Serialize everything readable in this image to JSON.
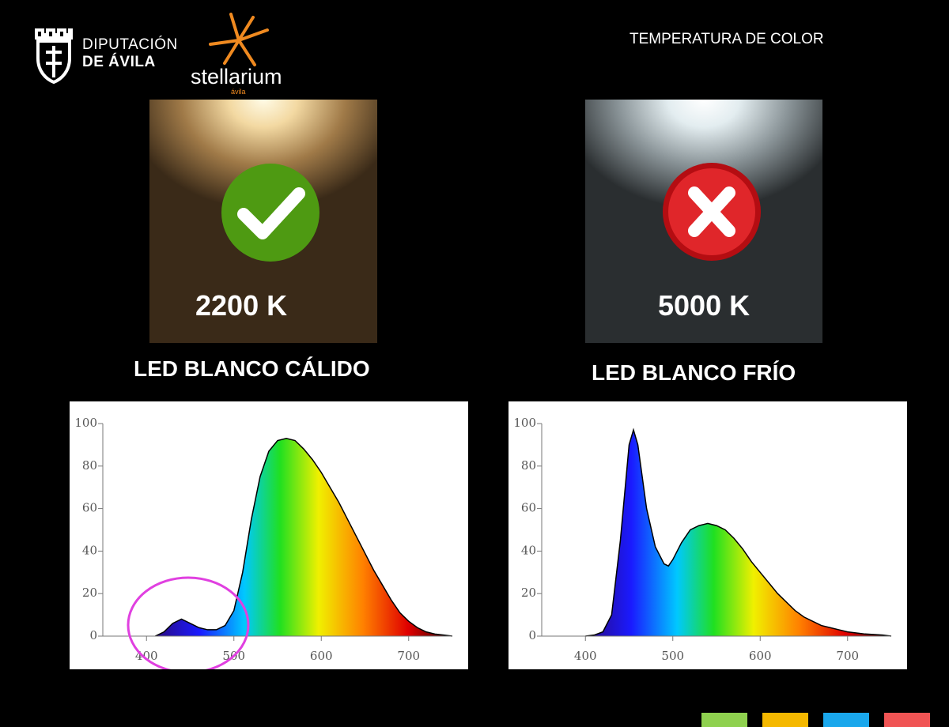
{
  "header": {
    "logo_1_line_1": "DIPUTACIÓN",
    "logo_1_line_2": "DE ÁVILA",
    "logo_2": "stellarium",
    "logo_2_sub": "ávila",
    "title": "TEMPERATURA DE COLOR"
  },
  "panels": [
    {
      "temperature": "2200 K",
      "label": "LED BLANCO CÁLIDO"
    },
    {
      "temperature": "5000 K",
      "label": "LED BLANCO FRÍO"
    }
  ],
  "chart_data": [
    {
      "type": "area",
      "x": [
        410,
        420,
        430,
        440,
        450,
        460,
        470,
        480,
        490,
        500,
        510,
        520,
        530,
        540,
        550,
        560,
        570,
        580,
        590,
        600,
        610,
        620,
        630,
        640,
        650,
        660,
        670,
        680,
        690,
        700,
        710,
        720,
        730,
        740,
        750
      ],
      "values": [
        0,
        2,
        6,
        8,
        6,
        4,
        3,
        3,
        5,
        12,
        30,
        55,
        75,
        87,
        92,
        93,
        92,
        88,
        83,
        77,
        70,
        63,
        55,
        47,
        39,
        31,
        24,
        17,
        11,
        7,
        4,
        2,
        1,
        0.5,
        0
      ],
      "xlim": [
        350,
        750
      ],
      "ylim": [
        0,
        100
      ],
      "xticks": [
        400,
        500,
        600,
        700
      ],
      "yticks": [
        0,
        20,
        40,
        60,
        80,
        100
      ]
    },
    {
      "type": "area",
      "x": [
        400,
        410,
        420,
        430,
        440,
        450,
        455,
        460,
        470,
        480,
        490,
        495,
        500,
        510,
        520,
        530,
        540,
        550,
        560,
        570,
        580,
        590,
        600,
        610,
        620,
        630,
        640,
        650,
        660,
        670,
        680,
        690,
        700,
        720,
        740,
        750
      ],
      "values": [
        0,
        0.5,
        2,
        10,
        45,
        90,
        97,
        90,
        60,
        42,
        34,
        33,
        36,
        44,
        50,
        52,
        53,
        52,
        50,
        46,
        41,
        35,
        30,
        25,
        20,
        16,
        12,
        9,
        7,
        5,
        4,
        3,
        2,
        1,
        0.5,
        0
      ],
      "xlim": [
        350,
        750
      ],
      "ylim": [
        0,
        100
      ],
      "xticks": [
        400,
        500,
        600,
        700
      ],
      "yticks": [
        0,
        20,
        40,
        60,
        80,
        100
      ]
    }
  ]
}
